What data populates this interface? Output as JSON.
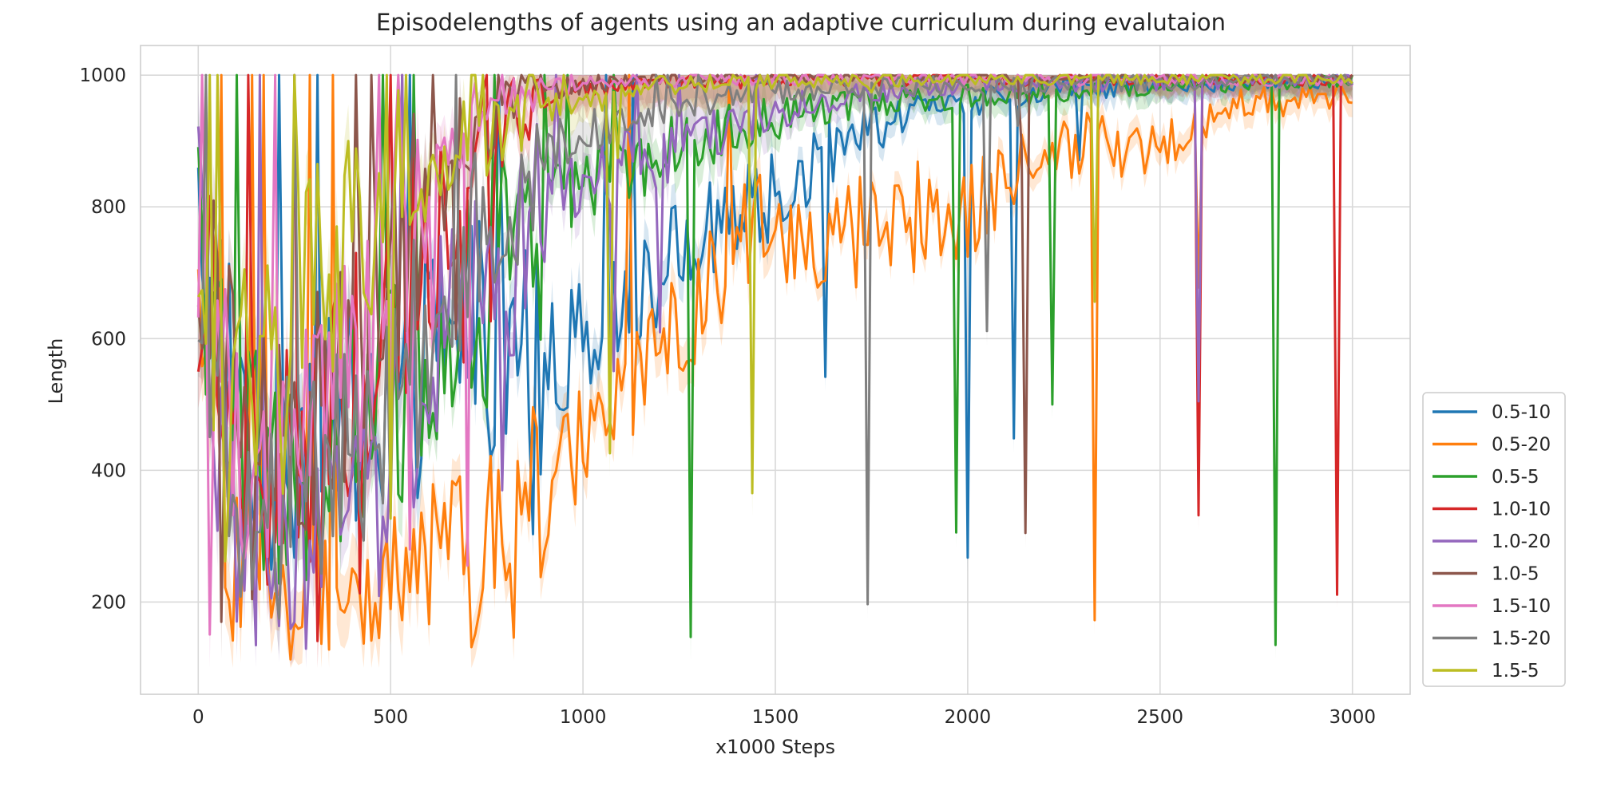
{
  "chart_data": {
    "type": "line",
    "title": "Episodelengths of agents using an adaptive curriculum during evalutaion",
    "xlabel": "x1000 Steps",
    "ylabel": "Length",
    "xlim": [
      -150,
      3150
    ],
    "ylim": [
      60,
      1045
    ],
    "xticks": [
      0,
      500,
      1000,
      1500,
      2000,
      2500,
      3000
    ],
    "yticks": [
      200,
      400,
      600,
      800,
      1000
    ],
    "xtick_labels": [
      "0",
      "500",
      "1000",
      "1500",
      "2000",
      "2500",
      "3000"
    ],
    "ytick_labels": [
      "200",
      "400",
      "600",
      "800",
      "1000"
    ],
    "grid": true,
    "legend_position": "lower-right outside",
    "confidence_band": true,
    "series": [
      {
        "name": "0.5-10",
        "color": "#1f77b4",
        "x": [
          0,
          100,
          200,
          300,
          400,
          500,
          600,
          700,
          800,
          900,
          1000,
          1100,
          1200,
          1300,
          1400,
          1500,
          1600,
          1700,
          1800,
          1900,
          2000,
          2200,
          2500,
          2800,
          3000
        ],
        "y": [
          780,
          520,
          420,
          440,
          470,
          500,
          560,
          610,
          600,
          560,
          600,
          650,
          700,
          760,
          800,
          820,
          860,
          900,
          930,
          950,
          960,
          975,
          985,
          990,
          990
        ]
      },
      {
        "name": "0.5-20",
        "color": "#ff7f0e",
        "x": [
          0,
          100,
          200,
          300,
          400,
          500,
          600,
          700,
          800,
          900,
          1000,
          1100,
          1200,
          1300,
          1400,
          1500,
          1600,
          1700,
          1800,
          1900,
          2000,
          2100,
          2200,
          2300,
          2400,
          2500,
          2600,
          2700,
          2800,
          2900,
          3000
        ],
        "y": [
          600,
          260,
          200,
          210,
          230,
          220,
          250,
          280,
          310,
          360,
          450,
          520,
          580,
          650,
          740,
          780,
          740,
          760,
          770,
          790,
          800,
          830,
          870,
          900,
          880,
          900,
          930,
          950,
          960,
          965,
          970
        ]
      },
      {
        "name": "0.5-5",
        "color": "#2ca02c",
        "x": [
          0,
          100,
          200,
          300,
          400,
          500,
          600,
          700,
          800,
          900,
          1000,
          1100,
          1200,
          1300,
          1400,
          1500,
          1600,
          1700,
          1800,
          1900,
          2000,
          2200,
          2500,
          2800,
          3000
        ],
        "y": [
          760,
          450,
          380,
          420,
          470,
          520,
          580,
          630,
          700,
          780,
          820,
          860,
          880,
          900,
          920,
          935,
          945,
          955,
          960,
          965,
          970,
          975,
          985,
          990,
          995
        ]
      },
      {
        "name": "1.0-10",
        "color": "#d62728",
        "x": [
          0,
          100,
          200,
          300,
          400,
          500,
          600,
          700,
          800,
          900,
          1000,
          1100,
          1200,
          1300,
          1400,
          1500,
          1700,
          2000,
          2500,
          3000
        ],
        "y": [
          790,
          440,
          400,
          430,
          550,
          650,
          750,
          850,
          930,
          960,
          975,
          985,
          990,
          993,
          995,
          995,
          995,
          995,
          995,
          995
        ]
      },
      {
        "name": "1.0-20",
        "color": "#9467bd",
        "x": [
          0,
          100,
          200,
          300,
          400,
          500,
          600,
          700,
          800,
          900,
          1000,
          1100,
          1200,
          1300,
          1400,
          1500,
          1600,
          1700,
          1800,
          2000,
          2500,
          3000
        ],
        "y": [
          740,
          320,
          270,
          290,
          330,
          420,
          560,
          650,
          720,
          780,
          830,
          860,
          880,
          905,
          925,
          945,
          960,
          970,
          978,
          985,
          990,
          995
        ]
      },
      {
        "name": "1.0-5",
        "color": "#8c564b",
        "x": [
          0,
          100,
          200,
          300,
          400,
          500,
          600,
          700,
          800,
          900,
          1000,
          1100,
          1200,
          1500,
          2000,
          2500,
          3000
        ],
        "y": [
          800,
          470,
          440,
          480,
          580,
          700,
          820,
          900,
          955,
          975,
          985,
          990,
          995,
          997,
          997,
          997,
          997
        ]
      },
      {
        "name": "1.5-10",
        "color": "#e377c2",
        "x": [
          0,
          100,
          200,
          300,
          400,
          500,
          600,
          700,
          800,
          900,
          1000,
          1100,
          1200,
          1500,
          2000,
          2500,
          3000
        ],
        "y": [
          770,
          420,
          400,
          450,
          560,
          690,
          810,
          920,
          965,
          975,
          985,
          990,
          993,
          995,
          995,
          995,
          995
        ]
      },
      {
        "name": "1.5-20",
        "color": "#7f7f7f",
        "x": [
          0,
          100,
          200,
          300,
          400,
          500,
          600,
          700,
          800,
          900,
          1000,
          1100,
          1200,
          1300,
          1400,
          1500,
          1700,
          2000,
          2500,
          3000
        ],
        "y": [
          710,
          380,
          350,
          380,
          450,
          520,
          600,
          720,
          820,
          880,
          910,
          930,
          950,
          960,
          970,
          975,
          980,
          985,
          990,
          995
        ]
      },
      {
        "name": "1.5-5",
        "color": "#bcbd22",
        "x": [
          0,
          50,
          100,
          150,
          200,
          250,
          300,
          350,
          400,
          450,
          500,
          600,
          700,
          800,
          900,
          1000,
          1100,
          1200,
          1500,
          2000,
          2500,
          3000
        ],
        "y": [
          750,
          540,
          520,
          560,
          590,
          640,
          680,
          720,
          760,
          800,
          830,
          870,
          910,
          930,
          945,
          955,
          970,
          985,
          992,
          995,
          996,
          997
        ]
      }
    ]
  }
}
